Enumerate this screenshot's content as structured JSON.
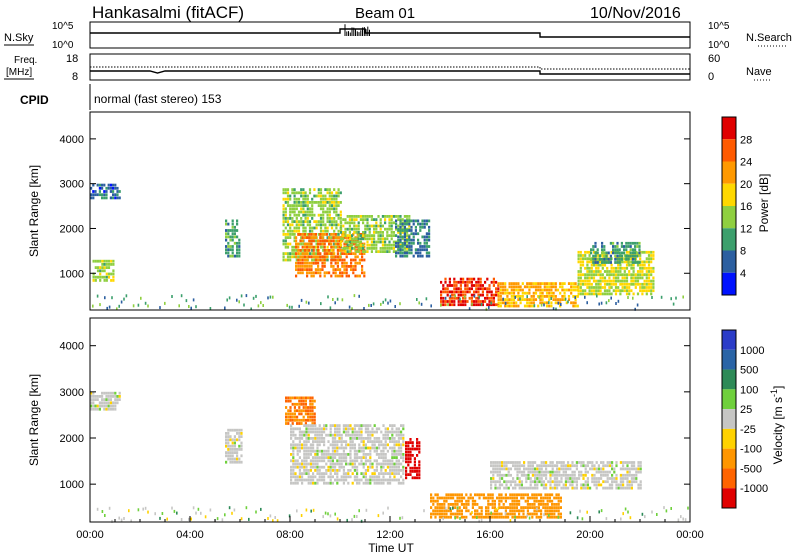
{
  "header": {
    "station": "Hankasalmi (fitACF)",
    "beam": "Beam 01",
    "date": "10/Nov/2016"
  },
  "top_panels": {
    "sky": {
      "label": "N.Sky",
      "tick_top": "10^5",
      "tick_bottom": "10^0"
    },
    "search": {
      "label": "N.Search",
      "tick_top": "10^5",
      "tick_bottom": "10^0"
    },
    "freq": {
      "label_line1": "Freq.",
      "label_line2": "[MHz]",
      "tick_top": "18",
      "tick_bottom": "8"
    },
    "nave": {
      "label": "Nave",
      "tick_top": "60",
      "tick_bottom": "0"
    },
    "cpid": {
      "label": "CPID",
      "text": "normal (fast stereo) 153"
    }
  },
  "power_colorbar": {
    "label": "Power [dB]",
    "ticks": [
      "28",
      "24",
      "20",
      "16",
      "12",
      "8",
      "4"
    ],
    "colors": [
      "#e00000",
      "#ff5a00",
      "#ff9900",
      "#ffd800",
      "#8fcf40",
      "#3c9f6c",
      "#2c5fa0",
      "#0012ff"
    ]
  },
  "velocity_colorbar": {
    "label": "Velocity [m s^-1]",
    "ticks": [
      "1000",
      "500",
      "100",
      "25",
      "-25",
      "-100",
      "-500",
      "-1000"
    ],
    "colors": [
      "#2b3cc8",
      "#2a64a6",
      "#2d8a57",
      "#6fd03c",
      "#c6c6c4",
      "#ffd200",
      "#ff9600",
      "#ff6400",
      "#e00000"
    ]
  },
  "chart_data": [
    {
      "type": "heatmap",
      "panel": "power",
      "ylabel": "Slant Range [km]",
      "ylim": [
        180,
        4600
      ],
      "yticks": [
        "1000",
        "2000",
        "3000",
        "4000"
      ],
      "xlim": [
        "00:00",
        "24:00"
      ],
      "regions": [
        {
          "t0": 0.0,
          "t1": 1.2,
          "r0": 2650,
          "r1": 3000,
          "value": 6
        },
        {
          "t0": 0.1,
          "t1": 0.9,
          "r0": 800,
          "r1": 1300,
          "value": 14
        },
        {
          "t0": 5.4,
          "t1": 6.0,
          "r0": 1400,
          "r1": 2200,
          "value": 10
        },
        {
          "t0": 7.7,
          "t1": 10.0,
          "r0": 1300,
          "r1": 2900,
          "value": 14
        },
        {
          "t0": 8.2,
          "t1": 11.0,
          "r0": 950,
          "r1": 1900,
          "value": 24
        },
        {
          "t0": 10.0,
          "t1": 12.8,
          "r0": 1500,
          "r1": 2300,
          "value": 14
        },
        {
          "t0": 12.2,
          "t1": 13.6,
          "r0": 1350,
          "r1": 2200,
          "value": 8
        },
        {
          "t0": 14.0,
          "t1": 16.3,
          "r0": 320,
          "r1": 900,
          "value": 28
        },
        {
          "t0": 16.3,
          "t1": 19.5,
          "r0": 280,
          "r1": 800,
          "value": 20
        },
        {
          "t0": 19.5,
          "t1": 22.5,
          "r0": 500,
          "r1": 1500,
          "value": 16
        },
        {
          "t0": 20.0,
          "t1": 22.0,
          "r0": 1200,
          "r1": 1700,
          "value": 10
        }
      ]
    },
    {
      "type": "heatmap",
      "panel": "velocity",
      "ylabel": "Slant Range [km]",
      "ylim": [
        180,
        4600
      ],
      "yticks": [
        "1000",
        "2000",
        "3000",
        "4000"
      ],
      "xlim": [
        "00:00",
        "24:00"
      ],
      "xlabel": "Time UT",
      "xticks": [
        "00:00",
        "04:00",
        "08:00",
        "12:00",
        "16:00",
        "20:00",
        "00:00"
      ],
      "regions": [
        {
          "t0": 0.0,
          "t1": 1.2,
          "r0": 2600,
          "r1": 3000,
          "value": 0
        },
        {
          "t0": 5.4,
          "t1": 6.1,
          "r0": 1500,
          "r1": 2200,
          "value": 0
        },
        {
          "t0": 7.8,
          "t1": 9.0,
          "r0": 2300,
          "r1": 2900,
          "value": -400
        },
        {
          "t0": 8.0,
          "t1": 12.5,
          "r0": 1000,
          "r1": 2300,
          "value": 0
        },
        {
          "t0": 12.6,
          "t1": 13.2,
          "r0": 1100,
          "r1": 2000,
          "value": -900
        },
        {
          "t0": 13.6,
          "t1": 18.8,
          "r0": 300,
          "r1": 800,
          "value": -300
        },
        {
          "t0": 16.0,
          "t1": 22.0,
          "r0": 900,
          "r1": 1500,
          "value": 0
        }
      ]
    },
    {
      "type": "line",
      "panel": "nsky",
      "x": [
        "00:00",
        "06:00",
        "10:00",
        "11:00",
        "18:00",
        "24:00"
      ],
      "values": [
        3,
        3,
        4,
        3,
        2,
        2
      ]
    }
  ]
}
